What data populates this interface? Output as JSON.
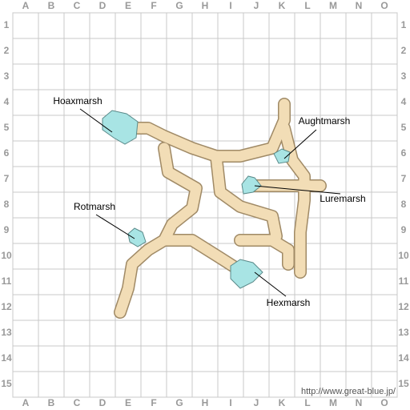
{
  "columns": [
    "A",
    "B",
    "C",
    "D",
    "E",
    "F",
    "G",
    "H",
    "I",
    "J",
    "K",
    "L",
    "M",
    "N",
    "O"
  ],
  "rows": [
    1,
    2,
    3,
    4,
    5,
    6,
    7,
    8,
    9,
    10,
    11,
    12,
    13,
    14,
    15
  ],
  "areas": [
    {
      "label": "Hoaxmarsh"
    },
    {
      "label": "Aughtmarsh"
    },
    {
      "label": "Luremarsh"
    },
    {
      "label": "Rotmarsh"
    },
    {
      "label": "Hexmarsh"
    }
  ],
  "credit": "http://www.great-blue.jp/"
}
